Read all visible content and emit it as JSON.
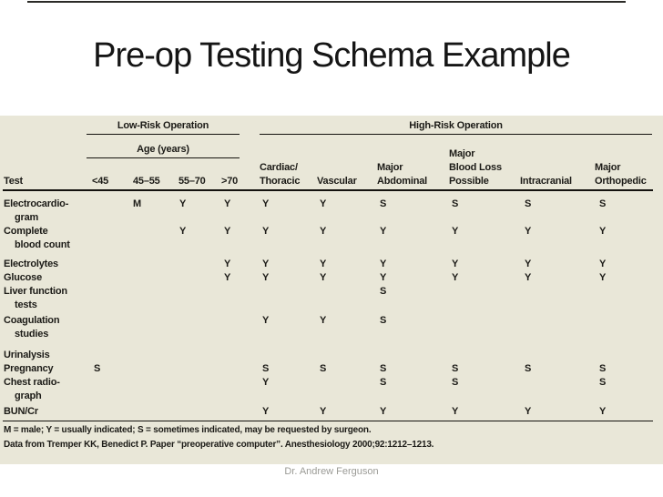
{
  "title": "Pre-op Testing Schema Example",
  "credit": "Dr. Andrew Ferguson",
  "colors": {
    "panel_background": "#e9e7d8",
    "table_text": "#1c1b17",
    "credit_text": "#9b9b96"
  },
  "table": {
    "group_headers": {
      "low_risk": "Low-Risk Operation",
      "age": "Age (years)",
      "high_risk": "High-Risk Operation"
    },
    "columns": [
      "Test",
      "<45",
      "45–55",
      "55–70",
      ">70",
      "Cardiac/\nThoracic",
      "Vascular",
      "Major\nAbdominal",
      "Major\nBlood Loss\nPossible",
      "Intracranial",
      "Major\nOrthopedic"
    ],
    "rows": [
      {
        "lines": [
          "Electrocardio-",
          "gram"
        ],
        "values": [
          "",
          "M",
          "Y",
          "Y",
          "Y",
          "Y",
          "S",
          "S",
          "S",
          "S"
        ]
      },
      {
        "lines": [
          "Complete",
          "blood count"
        ],
        "values": [
          "",
          "",
          "Y",
          "Y",
          "Y",
          "Y",
          "Y",
          "Y",
          "Y",
          "Y"
        ]
      },
      {
        "lines": [
          "Electrolytes"
        ],
        "values": [
          "",
          "",
          "",
          "Y",
          "Y",
          "Y",
          "Y",
          "Y",
          "Y",
          "Y"
        ]
      },
      {
        "lines": [
          "Glucose"
        ],
        "values": [
          "",
          "",
          "",
          "Y",
          "Y",
          "Y",
          "Y",
          "Y",
          "Y",
          "Y"
        ]
      },
      {
        "lines": [
          "Liver function",
          "tests"
        ],
        "values": [
          "",
          "",
          "",
          "",
          "",
          "",
          "S",
          "",
          "",
          ""
        ]
      },
      {
        "lines": [
          "Coagulation",
          "studies"
        ],
        "values": [
          "",
          "",
          "",
          "",
          "Y",
          "Y",
          "S",
          "",
          "",
          ""
        ]
      },
      {
        "lines": [
          "Urinalysis"
        ],
        "values": [
          "",
          "",
          "",
          "",
          "",
          "",
          "",
          "",
          "",
          ""
        ]
      },
      {
        "lines": [
          "Pregnancy"
        ],
        "values": [
          "S",
          "",
          "",
          "",
          "S",
          "S",
          "S",
          "S",
          "S",
          "S"
        ]
      },
      {
        "lines": [
          "Chest radio-",
          "graph"
        ],
        "values": [
          "",
          "",
          "",
          "",
          "Y",
          "",
          "S",
          "S",
          "",
          "S"
        ]
      },
      {
        "lines": [
          "BUN/Cr"
        ],
        "values": [
          "",
          "",
          "",
          "",
          "Y",
          "Y",
          "Y",
          "Y",
          "Y",
          "Y"
        ]
      }
    ],
    "footnotes": [
      "M = male; Y = usually indicated; S = sometimes indicated, may be requested by surgeon.",
      "Data from Tremper KK, Benedict P. Paper “preoperative computer”. Anesthesiology 2000;92:1212–1213."
    ]
  }
}
